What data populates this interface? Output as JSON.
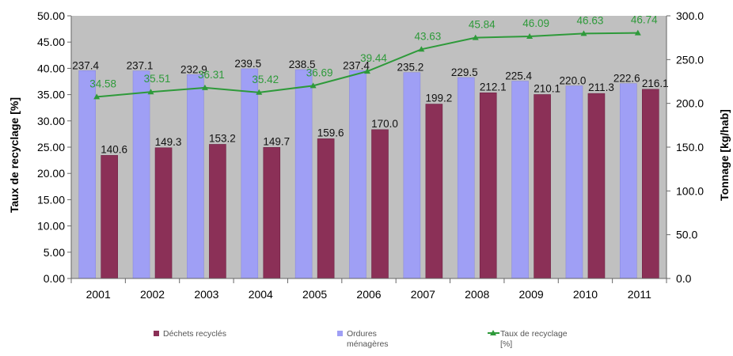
{
  "chart_data": {
    "type": "bar",
    "categories": [
      "2001",
      "2002",
      "2003",
      "2004",
      "2005",
      "2006",
      "2007",
      "2008",
      "2009",
      "2010",
      "2011"
    ],
    "series": [
      {
        "name": "Ordures ménagères",
        "axis": "right",
        "color": "#9f9ff5",
        "values": [
          237.4,
          237.1,
          232.9,
          239.5,
          238.5,
          237.4,
          235.2,
          229.5,
          225.4,
          220.0,
          222.6
        ],
        "labels": [
          "237.4",
          "237.1",
          "232.9",
          "239.5",
          "238.5",
          "237.4",
          "235.2",
          "229.5",
          "225.4",
          "220.0",
          "222.6"
        ]
      },
      {
        "name": "Déchets recyclés",
        "axis": "right",
        "color": "#8b3057",
        "values": [
          140.6,
          149.3,
          153.2,
          149.7,
          159.6,
          170.0,
          199.2,
          212.1,
          210.1,
          211.3,
          216.1
        ],
        "labels": [
          "140.6",
          "149.3",
          "153.2",
          "149.7",
          "159.6",
          "170.0",
          "199.2",
          "212.1",
          "210.1",
          "211.3",
          "216.1"
        ]
      },
      {
        "name": "Taux de recyclage [%]",
        "axis": "left",
        "type": "line",
        "color": "#2e9a3a",
        "values": [
          34.58,
          35.51,
          36.31,
          35.42,
          36.69,
          39.44,
          43.63,
          45.84,
          46.09,
          46.63,
          46.74
        ],
        "labels": [
          "34.58",
          "35.51",
          "36.31",
          "35.42",
          "36.69",
          "39.44",
          "43.63",
          "45.84",
          "46.09",
          "46.63",
          "46.74"
        ]
      }
    ],
    "ylabel": "Taux de recyclage [%]",
    "y2label": "Tonnage [kg/hab]",
    "ylim": [
      0,
      50
    ],
    "y2lim": [
      0,
      300
    ],
    "yticks": [
      "0.00",
      "5.00",
      "10.00",
      "15.00",
      "20.00",
      "25.00",
      "30.00",
      "35.00",
      "40.00",
      "45.00",
      "50.00"
    ],
    "y2ticks": [
      "0.0",
      "50.0",
      "100.0",
      "150.0",
      "200.0",
      "250.0",
      "300.0"
    ],
    "legend": [
      {
        "lines": [
          "Déchets recyclés"
        ],
        "color": "#8b3057",
        "marker": "square"
      },
      {
        "lines": [
          "Ordures",
          "ménagères"
        ],
        "color": "#9f9ff5",
        "marker": "square"
      },
      {
        "lines": [
          "Taux de recyclage",
          "[%]"
        ],
        "color": "#2e9a3a",
        "marker": "line"
      }
    ],
    "legend_position": "bottom",
    "plot_background": "#c0c0c0",
    "grid": false
  }
}
